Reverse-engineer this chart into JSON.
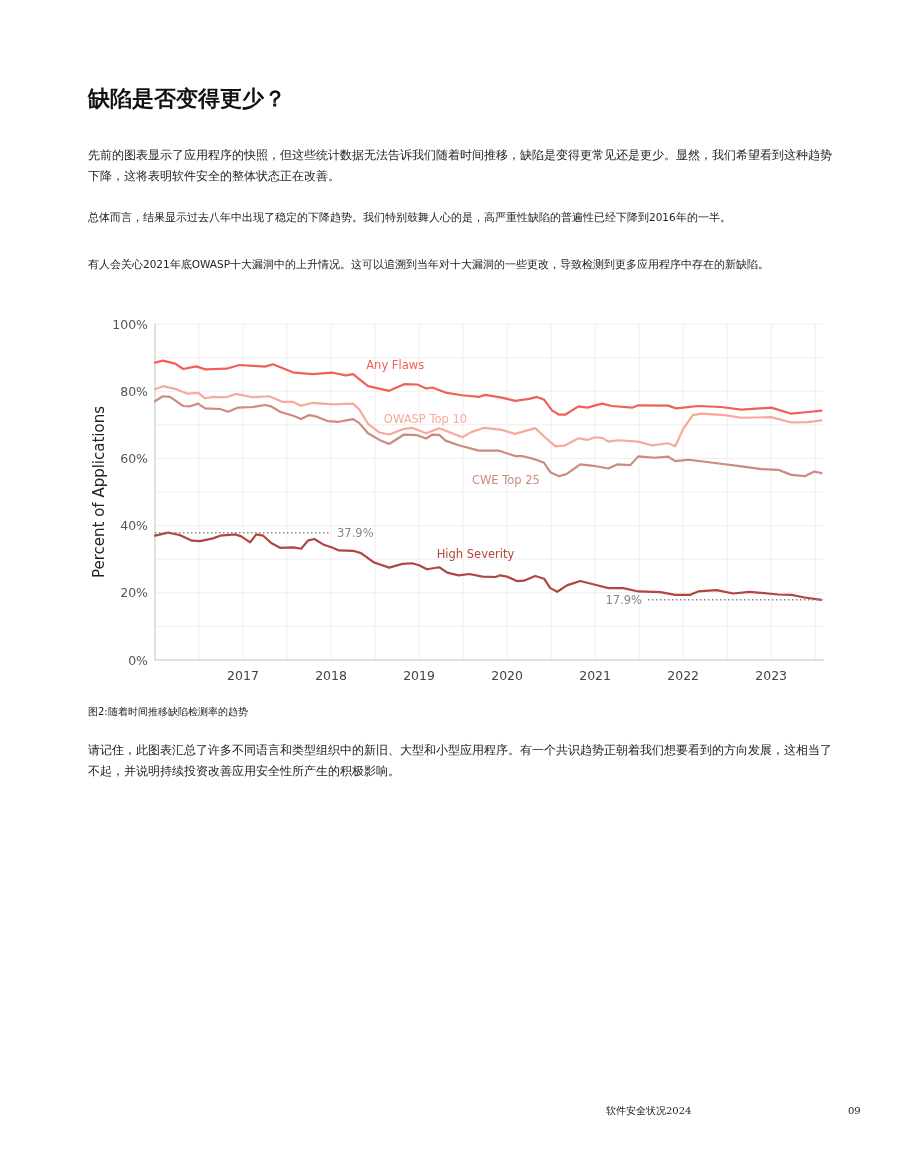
{
  "chart_data": {
    "type": "line",
    "title": "缺陷是否变得更少？",
    "subtitle": "先前的图表显示了应用程序的快照，但这些统计数据无法告诉我们随着时间推移，缺陷是变得更常见还是更少。显然，我们希望看到这种趋势下降，这将表明软件安全的整体状态正在改善。",
    "annotations": [
      "总体而言，结果显示过去八年中出现了稳定的下降趋势。我们特别鼓舞人心的是，高严重性缺陷的普遍性已经下降到2016年的一半。",
      "有人会关心2021年底OWASP十大漏洞中的上升情况。这可以追溯到当年对十大漏洞的一些更改，导致检测到更多应用程序中存在的新缺陷。",
      "图2:随着时间推移缺陷检测率的趋势",
      "请记住，此图表汇总了许多不同语言和类型组织中的新旧、大型和小型应用程序。有一个共识趋势正朝着我们想要看到的方向发展，这相当了不起，并说明持续投资改善应用安全性所产生的积极影响。",
      "软件安全状况2024",
      "09"
    ],
    "ylabel": "Percent of Applications",
    "xlim": [
      2016,
      2023.6
    ],
    "xticks": [
      {
        "value": 2016.5,
        "label": null
      },
      2017,
      {
        "value": 2017.5,
        "label": null
      },
      2018,
      {
        "value": 2018.5,
        "label": null
      },
      2019,
      {
        "value": 2019.5,
        "label": null
      },
      2020,
      {
        "value": 2020.5,
        "label": null
      },
      2021,
      {
        "value": 2021.5,
        "label": null
      },
      2022,
      {
        "value": 2022.5,
        "label": null
      },
      2023,
      {
        "value": 2023.5,
        "label": null
      }
    ],
    "ylim": [
      0,
      100
    ],
    "yticks": [
      {
        "value": 0,
        "label": "0%"
      },
      {
        "value": 10,
        "label": null
      },
      {
        "value": 20,
        "label": "20%"
      },
      {
        "value": 30,
        "label": null
      },
      {
        "value": 40,
        "label": "40%"
      },
      {
        "value": 50,
        "label": null
      },
      {
        "value": 60,
        "label": "60%"
      },
      {
        "value": 70,
        "label": null
      },
      {
        "value": 80,
        "label": "80%"
      },
      {
        "value": 90,
        "label": null
      },
      {
        "value": 100,
        "label": "100%"
      }
    ],
    "grid": true,
    "legend": false,
    "ref_lines": [
      {
        "axis": "y",
        "value": 37.9,
        "label": "37.9%",
        "color": "#888888",
        "line_style": "dotted"
      },
      {
        "axis": "y",
        "value": 17.9,
        "label": "17.9%",
        "color": "#888888",
        "line_style": "dotted"
      }
    ],
    "series": [
      {
        "name": "Any Flaws",
        "color": "#f0605a",
        "x": [
          2016.0,
          2016.09,
          2016.23,
          2016.32,
          2016.47,
          2016.57,
          2016.81,
          2016.96,
          2017.25,
          2017.34,
          2017.58,
          2017.79,
          2018.02,
          2018.17,
          2018.25,
          2018.42,
          2018.66,
          2018.83,
          2018.98,
          2019.08,
          2019.15,
          2019.3,
          2019.49,
          2019.68,
          2019.75,
          2019.94,
          2020.09,
          2020.25,
          2020.34,
          2020.42,
          2020.51,
          2020.59,
          2020.66,
          2020.81,
          2020.91,
          2021.08,
          2021.19,
          2021.42,
          2021.49,
          2021.83,
          2021.92,
          2022.17,
          2022.43,
          2022.66,
          2023.0,
          2023.23,
          2023.42,
          2023.57
        ],
        "values": [
          88.5,
          89.1,
          88.2,
          86.6,
          87.4,
          86.5,
          86.7,
          87.8,
          87.3,
          88.0,
          85.5,
          85.1,
          85.5,
          84.7,
          85.1,
          81.5,
          80.1,
          82.1,
          82.0,
          80.8,
          81.1,
          79.6,
          78.8,
          78.3,
          78.9,
          78.1,
          77.1,
          77.7,
          78.3,
          77.5,
          74.3,
          73.0,
          73.0,
          75.5,
          75.1,
          76.3,
          75.6,
          75.1,
          75.8,
          75.7,
          74.9,
          75.6,
          75.3,
          74.5,
          75.1,
          73.3,
          73.8,
          74.2
        ]
      },
      {
        "name": "OWASP Top 10",
        "color": "#f7a99a",
        "x": [
          2016.0,
          2016.09,
          2016.23,
          2016.36,
          2016.49,
          2016.57,
          2016.66,
          2016.81,
          2016.92,
          2017.11,
          2017.3,
          2017.45,
          2017.57,
          2017.66,
          2017.79,
          2018.02,
          2018.25,
          2018.32,
          2018.42,
          2018.55,
          2018.66,
          2018.83,
          2018.92,
          2019.08,
          2019.23,
          2019.49,
          2019.6,
          2019.74,
          2019.94,
          2020.09,
          2020.32,
          2020.43,
          2020.55,
          2020.66,
          2020.81,
          2020.91,
          2021.0,
          2021.08,
          2021.15,
          2021.26,
          2021.49,
          2021.64,
          2021.83,
          2021.91,
          2022.0,
          2022.11,
          2022.21,
          2022.47,
          2022.66,
          2023.0,
          2023.23,
          2023.42,
          2023.57
        ],
        "values": [
          80.6,
          81.5,
          80.7,
          79.3,
          79.5,
          77.9,
          78.3,
          78.2,
          79.2,
          78.2,
          78.5,
          76.8,
          76.8,
          75.7,
          76.5,
          76.1,
          76.3,
          74.6,
          70.3,
          67.7,
          67.1,
          68.8,
          69.1,
          67.5,
          69.0,
          66.3,
          67.9,
          69.1,
          68.5,
          67.3,
          69.0,
          66.3,
          63.6,
          63.9,
          66.0,
          65.5,
          66.3,
          66.1,
          65.0,
          65.4,
          65.0,
          63.9,
          64.5,
          63.6,
          68.8,
          72.9,
          73.3,
          72.9,
          72.1,
          72.3,
          70.7,
          70.8,
          71.3
        ]
      },
      {
        "name": "CWE Top 25",
        "color": "#cc8a80",
        "x": [
          2016.0,
          2016.09,
          2016.17,
          2016.32,
          2016.4,
          2016.49,
          2016.57,
          2016.74,
          2016.83,
          2016.94,
          2017.11,
          2017.25,
          2017.32,
          2017.42,
          2017.57,
          2017.66,
          2017.75,
          2017.83,
          2017.96,
          2018.09,
          2018.25,
          2018.32,
          2018.42,
          2018.55,
          2018.66,
          2018.83,
          2018.98,
          2019.08,
          2019.15,
          2019.23,
          2019.3,
          2019.45,
          2019.68,
          2019.91,
          2020.09,
          2020.17,
          2020.32,
          2020.42,
          2020.49,
          2020.59,
          2020.68,
          2020.83,
          2020.98,
          2021.15,
          2021.25,
          2021.4,
          2021.49,
          2021.68,
          2021.83,
          2021.91,
          2022.06,
          2022.25,
          2022.43,
          2022.62,
          2022.89,
          2023.08,
          2023.23,
          2023.38,
          2023.49,
          2023.57
        ],
        "values": [
          77.0,
          78.5,
          78.3,
          75.6,
          75.5,
          76.3,
          74.9,
          74.7,
          73.9,
          75.1,
          75.3,
          75.9,
          75.5,
          73.9,
          72.7,
          71.7,
          72.9,
          72.5,
          71.1,
          70.9,
          71.7,
          70.5,
          67.5,
          65.5,
          64.3,
          67.1,
          66.9,
          65.9,
          67.1,
          67.0,
          65.3,
          63.9,
          62.3,
          62.3,
          60.7,
          60.7,
          59.7,
          58.7,
          55.9,
          54.7,
          55.4,
          58.2,
          57.8,
          57.0,
          58.2,
          58.0,
          60.6,
          60.2,
          60.5,
          59.2,
          59.6,
          59.0,
          58.4,
          57.8,
          56.8,
          56.6,
          55.1,
          54.7,
          56.1,
          55.6
        ]
      },
      {
        "name": "High Severity",
        "color": "#b0463e",
        "x": [
          2016.0,
          2016.15,
          2016.28,
          2016.42,
          2016.51,
          2016.66,
          2016.74,
          2016.91,
          2016.98,
          2017.08,
          2017.15,
          2017.23,
          2017.32,
          2017.42,
          2017.57,
          2017.66,
          2017.74,
          2017.81,
          2017.91,
          2018.02,
          2018.09,
          2018.25,
          2018.34,
          2018.49,
          2018.66,
          2018.81,
          2018.92,
          2019.0,
          2019.09,
          2019.23,
          2019.32,
          2019.45,
          2019.57,
          2019.72,
          2019.87,
          2019.92,
          2020.0,
          2020.11,
          2020.19,
          2020.32,
          2020.42,
          2020.49,
          2020.57,
          2020.68,
          2020.83,
          2021.0,
          2021.15,
          2021.32,
          2021.49,
          2021.74,
          2021.91,
          2022.08,
          2022.17,
          2022.38,
          2022.57,
          2022.75,
          2022.92,
          2023.08,
          2023.23,
          2023.38,
          2023.57
        ],
        "values": [
          37.0,
          37.9,
          37.2,
          35.5,
          35.4,
          36.2,
          37.0,
          37.4,
          36.8,
          35.0,
          37.4,
          37.0,
          34.8,
          33.4,
          33.5,
          33.1,
          35.6,
          36.0,
          34.4,
          33.4,
          32.6,
          32.5,
          31.8,
          29.0,
          27.5,
          28.6,
          28.8,
          28.2,
          27.0,
          27.6,
          26.0,
          25.2,
          25.6,
          24.8,
          24.7,
          25.2,
          24.8,
          23.5,
          23.6,
          25.0,
          24.2,
          21.4,
          20.3,
          22.2,
          23.5,
          22.4,
          21.4,
          21.4,
          20.4,
          20.2,
          19.4,
          19.4,
          20.4,
          20.8,
          19.8,
          20.3,
          19.9,
          19.5,
          19.4,
          18.6,
          17.9
        ]
      }
    ]
  }
}
